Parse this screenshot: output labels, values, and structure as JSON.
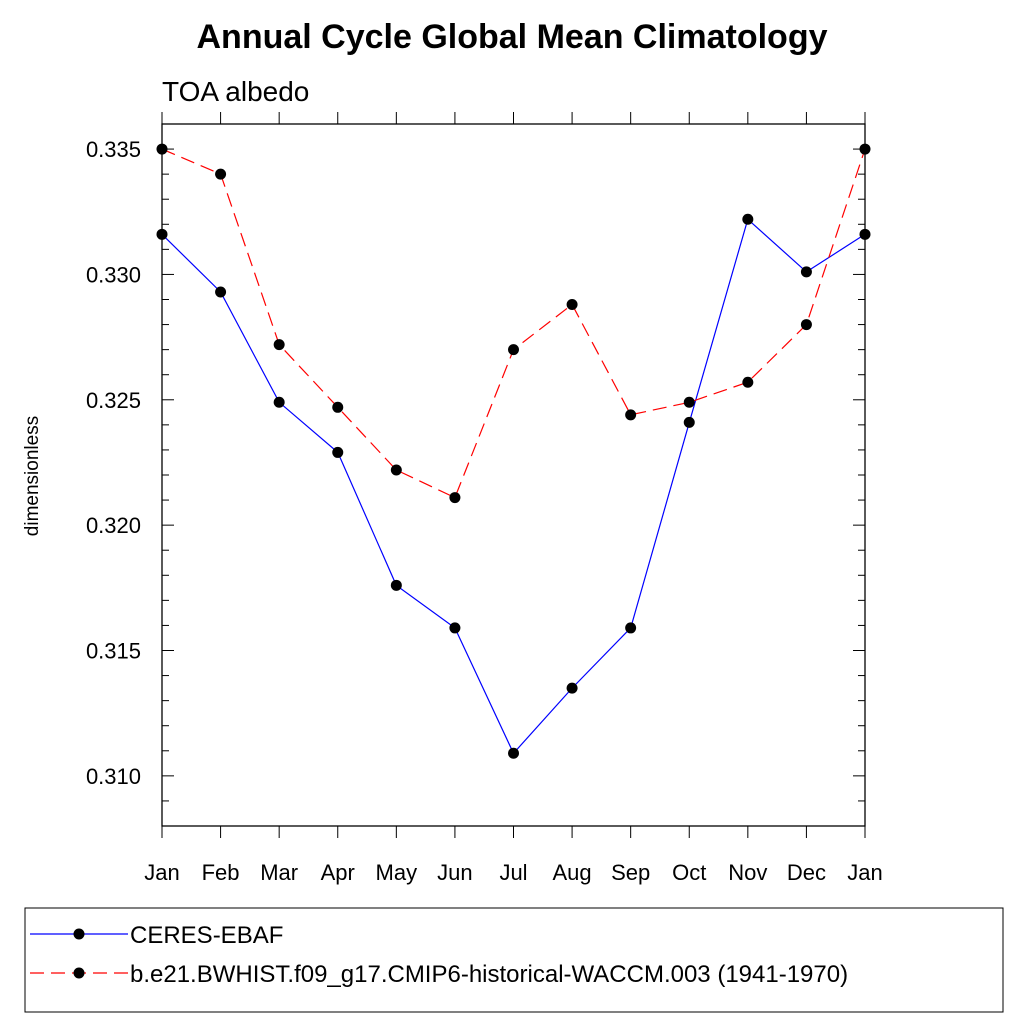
{
  "chart_data": {
    "type": "line",
    "title": "Annual Cycle Global Mean Climatology",
    "subtitle": "TOA albedo",
    "xlabel": "",
    "ylabel": "dimensionless",
    "categories": [
      "Jan",
      "Feb",
      "Mar",
      "Apr",
      "May",
      "Jun",
      "Jul",
      "Aug",
      "Sep",
      "Oct",
      "Nov",
      "Dec",
      "Jan"
    ],
    "ylim": [
      0.308,
      0.336
    ],
    "yticks": [
      0.31,
      0.315,
      0.32,
      0.325,
      0.33,
      0.335
    ],
    "ytick_labels": [
      "0.310",
      "0.315",
      "0.320",
      "0.325",
      "0.330",
      "0.335"
    ],
    "grid": false,
    "legend_position": "bottom",
    "series": [
      {
        "name": "CERES-EBAF",
        "color": "#0000ff",
        "style": "solid",
        "values": [
          0.3316,
          0.3293,
          0.3249,
          0.3229,
          0.3176,
          0.3159,
          0.3109,
          0.3135,
          0.3159,
          0.3241,
          0.3322,
          0.3301,
          0.3316
        ]
      },
      {
        "name": "b.e21.BWHIST.f09_g17.CMIP6-historical-WACCM.003 (1941-1970)",
        "color": "#ff0000",
        "style": "dashed",
        "values": [
          0.335,
          0.334,
          0.3272,
          0.3247,
          0.3222,
          0.3211,
          0.327,
          0.3288,
          0.3244,
          0.3249,
          0.3257,
          0.328,
          0.335
        ]
      }
    ]
  }
}
